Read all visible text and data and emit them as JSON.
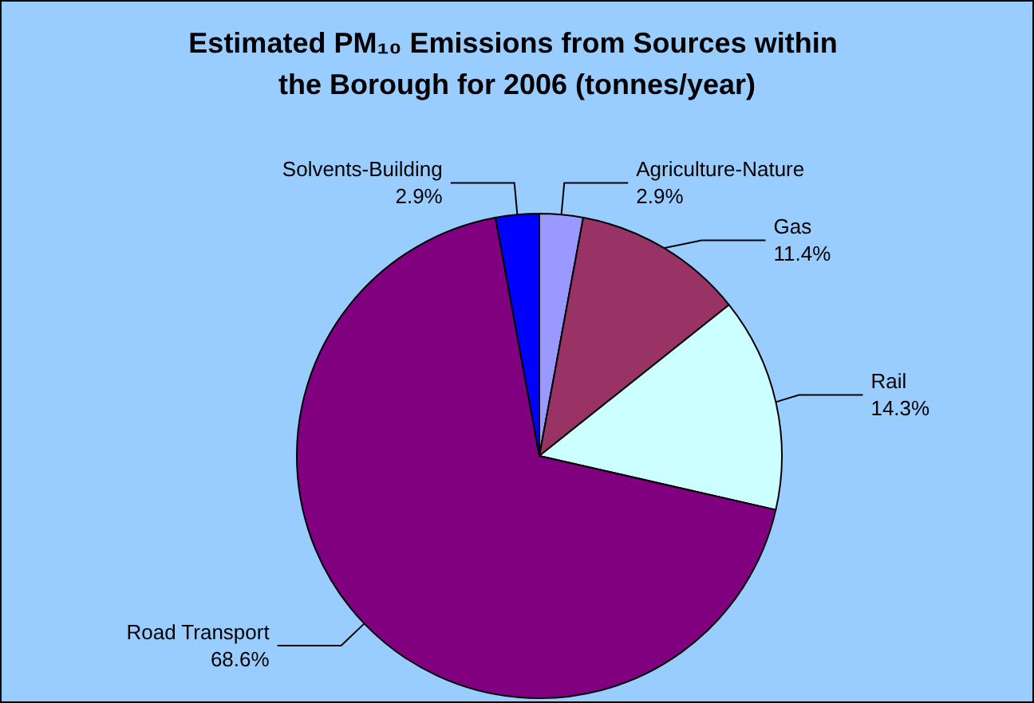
{
  "chart_data": {
    "type": "pie",
    "title": "Estimated PM₁₀ Emissions from Sources within the Borough for 2006 (tonnes/year)",
    "categories": [
      "Agriculture-Nature",
      "Gas",
      "Rail",
      "Road Transport",
      "Solvents-Building"
    ],
    "values": [
      2.9,
      11.4,
      14.3,
      68.6,
      2.9
    ],
    "value_labels": [
      "2.9%",
      "11.4%",
      "14.3%",
      "68.6%",
      "2.9%"
    ],
    "colors": [
      "#9999ff",
      "#993366",
      "#ccffff",
      "#800080",
      "#0000ff"
    ],
    "legend": false
  }
}
